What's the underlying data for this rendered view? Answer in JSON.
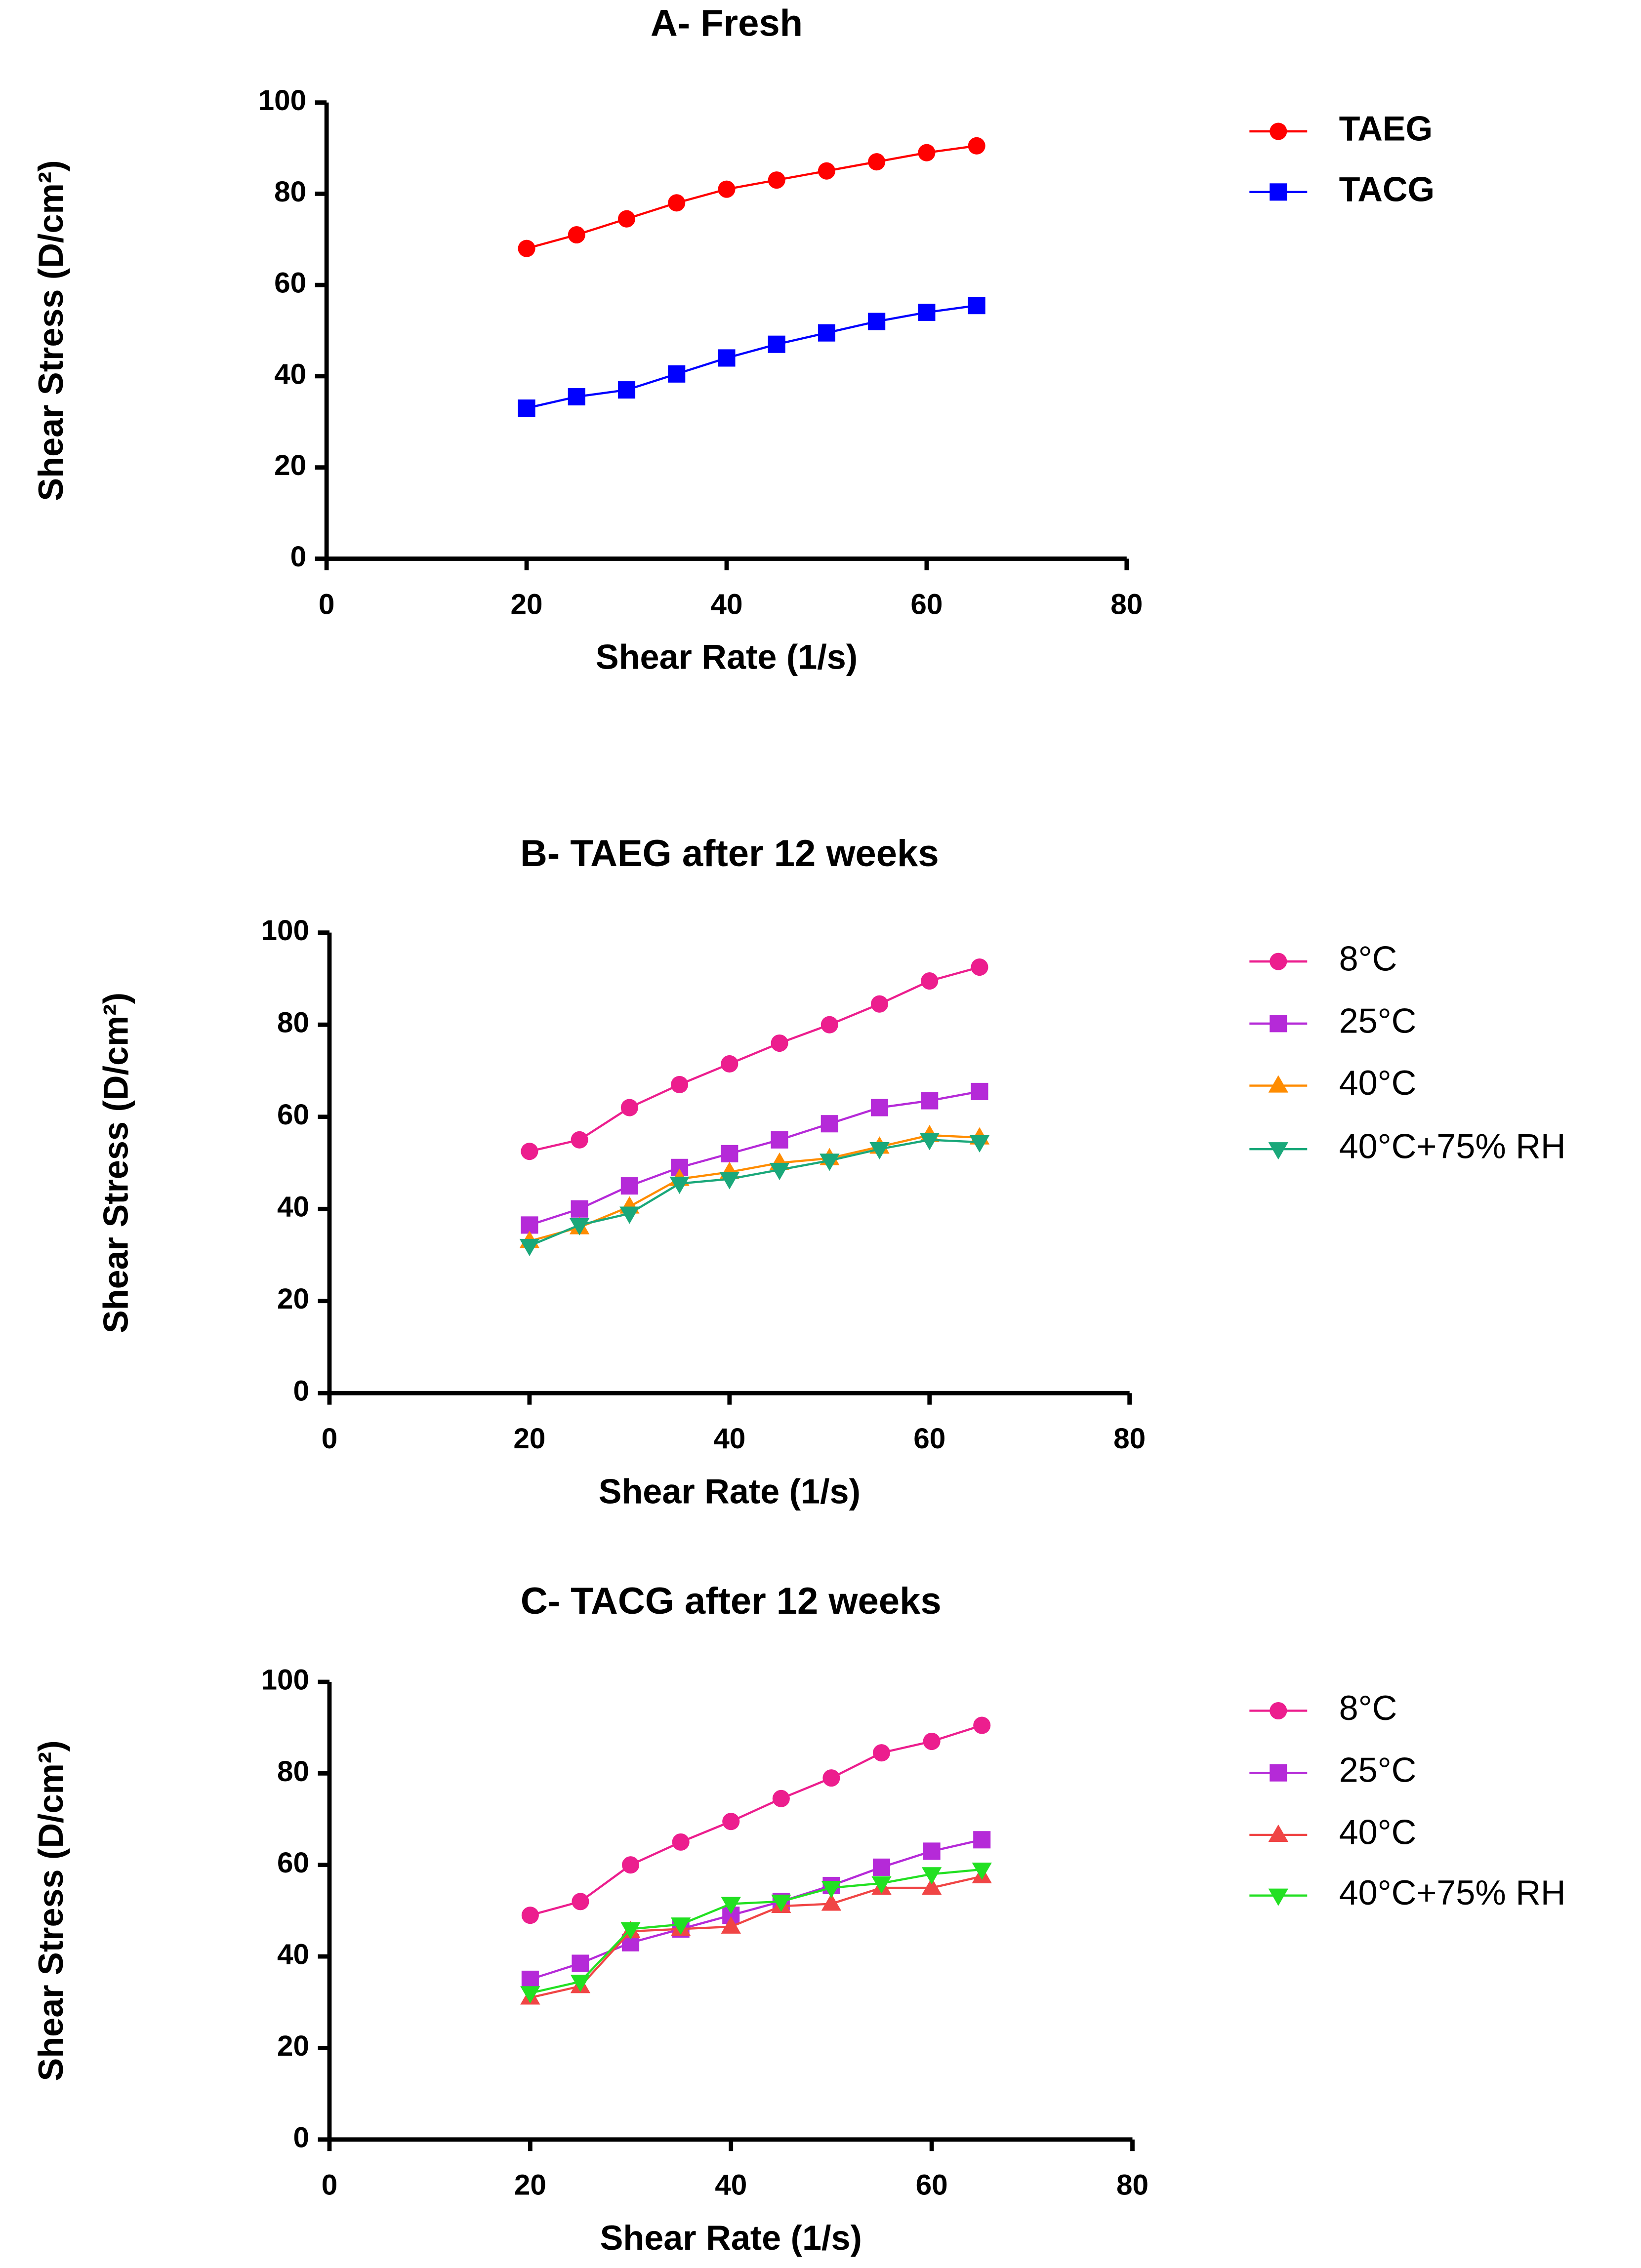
{
  "chart_data": [
    {
      "type": "line",
      "title": "A- Fresh",
      "x_label": "Shear Rate (1/s)",
      "y_label": "Shear Stress (D/cm²)",
      "x": [
        20,
        25,
        30,
        35,
        40,
        45,
        50,
        55,
        60,
        65
      ],
      "series": [
        {
          "name": "TAEG",
          "color": "#ff0000",
          "marker": "circle",
          "values": [
            68,
            71,
            74.5,
            78,
            81,
            83,
            85,
            87,
            89,
            90.5
          ]
        },
        {
          "name": "TACG",
          "color": "#0000ff",
          "marker": "square",
          "values": [
            33,
            35.5,
            37,
            40.5,
            44,
            47,
            49.5,
            52,
            54,
            55.5
          ]
        }
      ],
      "xlim": [
        0,
        80
      ],
      "xticks": [
        0,
        20,
        40,
        60,
        80
      ],
      "ylim": [
        0,
        100
      ],
      "yticks": [
        0,
        20,
        40,
        60,
        80,
        100
      ],
      "grid": false,
      "legend": "right"
    },
    {
      "type": "line",
      "title": "B-  TAEG after 12 weeks",
      "x_label": "Shear Rate (1/s)",
      "y_label": "Shear Stress (D/cm²)",
      "x": [
        20,
        25,
        30,
        35,
        40,
        45,
        50,
        55,
        60,
        65
      ],
      "series": [
        {
          "name": "8°C",
          "color": "#ec1e8e",
          "marker": "circle",
          "values": [
            52.5,
            55,
            62,
            67,
            71.5,
            76,
            80,
            84.5,
            89.5,
            92.5
          ]
        },
        {
          "name": "25°C",
          "color": "#b52ad8",
          "marker": "square",
          "values": [
            36.5,
            40,
            45,
            49,
            52,
            55,
            58.5,
            62,
            63.5,
            65.5
          ]
        },
        {
          "name": "40°C",
          "color": "#ff8c00",
          "marker": "triangle-up",
          "values": [
            33,
            36,
            40.5,
            46.5,
            48,
            50,
            51,
            53.5,
            56,
            55.5
          ]
        },
        {
          "name": "40°C+75% RH",
          "color": "#1aa87a",
          "marker": "triangle-down",
          "values": [
            32,
            36.5,
            39,
            45.5,
            46.5,
            48.5,
            50.5,
            53,
            55,
            54.5
          ]
        }
      ],
      "xlim": [
        0,
        80
      ],
      "xticks": [
        0,
        20,
        40,
        60,
        80
      ],
      "ylim": [
        0,
        100
      ],
      "yticks": [
        0,
        20,
        40,
        60,
        80,
        100
      ],
      "grid": false,
      "legend": "right"
    },
    {
      "type": "line",
      "title": "C- TACG after 12 weeks",
      "x_label": "Shear Rate (1/s)",
      "y_label": "Shear Stress (D/cm²)",
      "x": [
        20,
        25,
        30,
        35,
        40,
        45,
        50,
        55,
        60,
        65
      ],
      "series": [
        {
          "name": "8°C",
          "color": "#ec1e8e",
          "marker": "circle",
          "values": [
            49,
            52,
            60,
            65,
            69.5,
            74.5,
            79,
            84.5,
            87,
            90.5
          ]
        },
        {
          "name": "25°C",
          "color": "#b52ad8",
          "marker": "square",
          "values": [
            35,
            38.5,
            43,
            46,
            49,
            52,
            55.5,
            59.5,
            63,
            65.5
          ]
        },
        {
          "name": "40°C",
          "color": "#f04545",
          "marker": "triangle-up",
          "values": [
            31,
            33.5,
            45.5,
            46,
            46.5,
            51,
            51.5,
            55,
            55,
            57.5
          ]
        },
        {
          "name": "40°C+75% RH",
          "color": "#22e022",
          "marker": "triangle-down",
          "values": [
            32,
            34.5,
            46,
            47,
            51.5,
            52,
            55,
            56,
            58,
            59
          ]
        }
      ],
      "xlim": [
        0,
        80
      ],
      "xticks": [
        0,
        20,
        40,
        60,
        80
      ],
      "ylim": [
        0,
        100
      ],
      "yticks": [
        0,
        20,
        40,
        60,
        80,
        100
      ],
      "grid": false,
      "legend": "right"
    }
  ]
}
